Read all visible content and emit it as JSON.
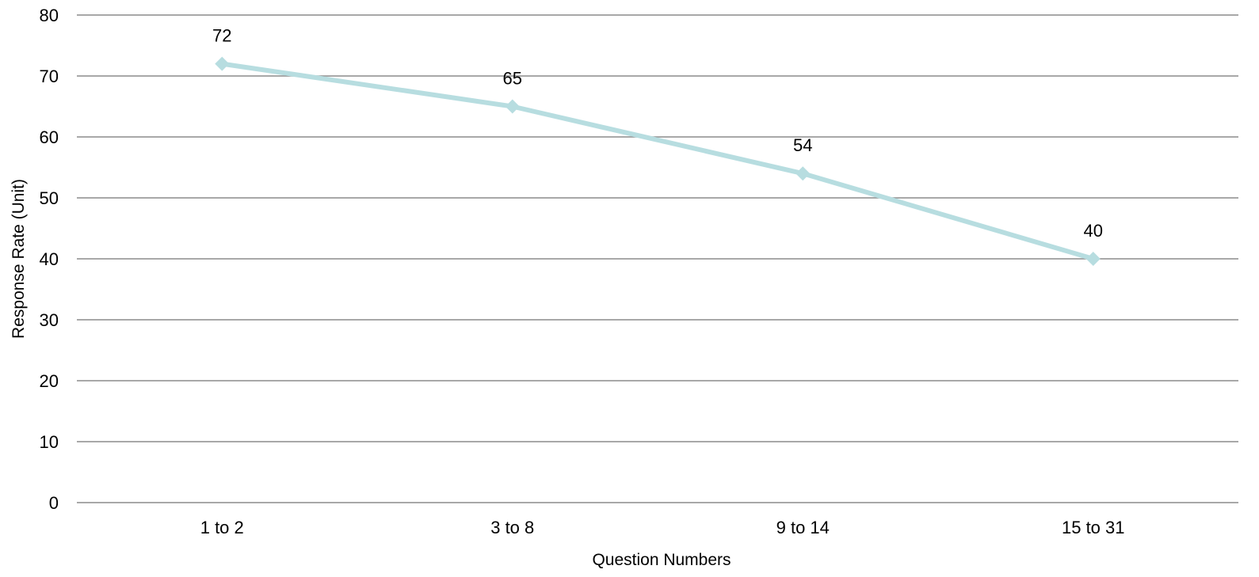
{
  "chart_data": {
    "type": "line",
    "categories": [
      "1 to 2",
      "3 to 8",
      "9 to 14",
      "15 to 31"
    ],
    "series": [
      {
        "values": [
          72,
          65,
          54,
          40
        ],
        "color": "#b7dde0",
        "marker": "diamond"
      }
    ],
    "data_labels": [
      "72",
      "65",
      "54",
      "40"
    ],
    "xlabel": "Question Numbers",
    "ylabel": "Response Rate (Unit)",
    "ylim": [
      0,
      80
    ],
    "yticks": [
      0,
      10,
      20,
      30,
      40,
      50,
      60,
      70,
      80
    ],
    "ytick_labels": [
      "0",
      "10",
      "20",
      "30",
      "40",
      "50",
      "60",
      "70",
      "80"
    ],
    "grid": true,
    "gridline_color": "#8c8c8c",
    "legend": "none"
  }
}
